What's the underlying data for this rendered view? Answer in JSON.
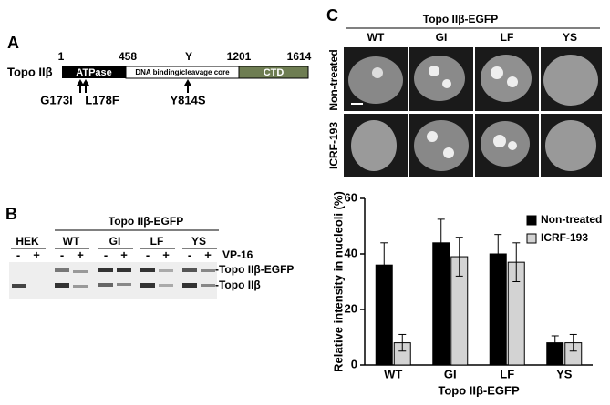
{
  "panel_a": {
    "label": "A",
    "protein": "Topo IIβ",
    "positions": [
      "1",
      "458",
      "Y",
      "1201",
      "1614"
    ],
    "domains": [
      "ATPase",
      "DNA binding/cleavage core",
      "CTD"
    ],
    "mutations": [
      "G173I",
      "L178F",
      "Y814S"
    ]
  },
  "panel_b": {
    "label": "B",
    "construct": "Topo IIβ-EGFP",
    "control": "HEK",
    "lanes": [
      "WT",
      "GI",
      "LF",
      "YS"
    ],
    "treatment_signs": [
      "-",
      "+",
      "-",
      "+",
      "-",
      "+",
      "-",
      "+",
      "-",
      "+"
    ],
    "treatment": "VP-16",
    "bands": [
      "-Topo IIβ-EGFP",
      "-Topo IIβ"
    ]
  },
  "panel_c": {
    "label": "C",
    "construct": "Topo IIβ-EGFP",
    "columns": [
      "WT",
      "GI",
      "LF",
      "YS"
    ],
    "rows": [
      "Non-treated",
      "ICRF-193"
    ]
  },
  "chart_data": {
    "type": "bar",
    "categories": [
      "WT",
      "GI",
      "LF",
      "YS"
    ],
    "x_label": "Topo IIβ-EGFP",
    "y_label": "Relative intensity in nucleoli (%)",
    "series": [
      {
        "name": "Non-treated",
        "color": "#000000",
        "values": [
          36,
          44,
          40,
          8
        ],
        "errors": [
          8,
          8.5,
          7,
          2.5
        ]
      },
      {
        "name": "ICRF-193",
        "color": "#d3d3d3",
        "values": [
          8,
          39,
          37,
          8
        ],
        "errors": [
          3,
          7,
          7,
          3
        ]
      }
    ],
    "ylim": [
      0,
      60
    ],
    "yticks": [
      0,
      20,
      40,
      60
    ],
    "legend": "upper right"
  }
}
